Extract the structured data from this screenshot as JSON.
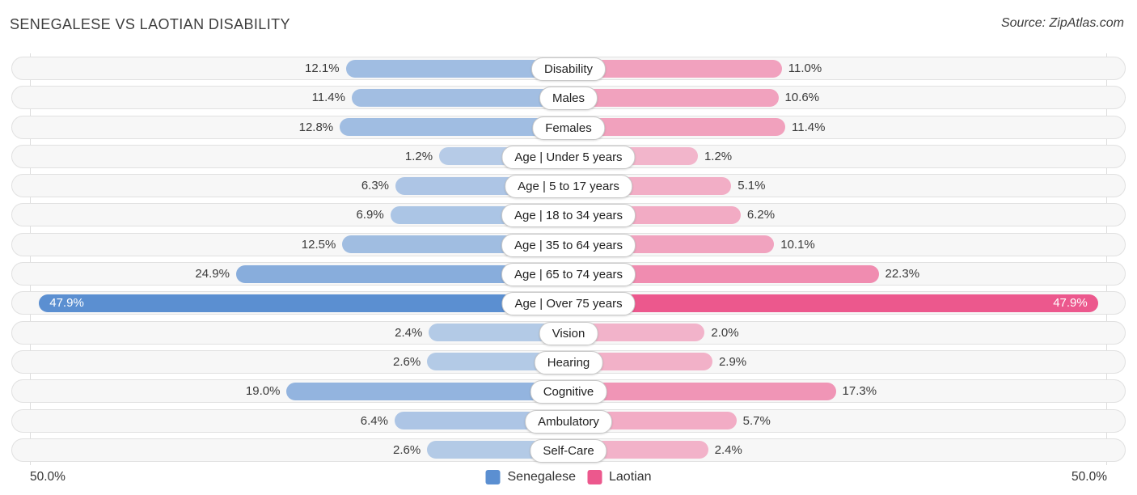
{
  "title": "SENEGALESE VS LAOTIAN DISABILITY",
  "source": "Source: ZipAtlas.com",
  "axis": {
    "left": "50.0%",
    "right": "50.0%"
  },
  "chart_data": {
    "type": "bar",
    "subtype": "diverging-horizontal",
    "title": "Senegalese vs Laotian Disability",
    "categories": [
      "Disability",
      "Males",
      "Females",
      "Age | Under 5 years",
      "Age | 5 to 17 years",
      "Age | 18 to 34 years",
      "Age | 35 to 64 years",
      "Age | 65 to 74 years",
      "Age | Over 75 years",
      "Vision",
      "Hearing",
      "Cognitive",
      "Ambulatory",
      "Self-Care"
    ],
    "series": [
      {
        "name": "Senegalese",
        "color": "#5b8fd1",
        "side": "left",
        "values": [
          12.1,
          11.4,
          12.8,
          1.2,
          6.3,
          6.9,
          12.5,
          24.9,
          47.9,
          2.4,
          2.6,
          19.0,
          6.4,
          2.6
        ]
      },
      {
        "name": "Laotian",
        "color": "#ec588d",
        "side": "right",
        "values": [
          11.0,
          10.6,
          11.4,
          1.2,
          5.1,
          6.2,
          10.1,
          22.3,
          47.9,
          2.0,
          2.9,
          17.3,
          5.7,
          2.4
        ]
      }
    ],
    "value_suffix": "%",
    "axis_range_each_side": 50.0,
    "axis_tick_labels": {
      "left": "50.0%",
      "right": "50.0%"
    },
    "legend_position": "bottom-center",
    "grid": "edge-lines-only"
  }
}
